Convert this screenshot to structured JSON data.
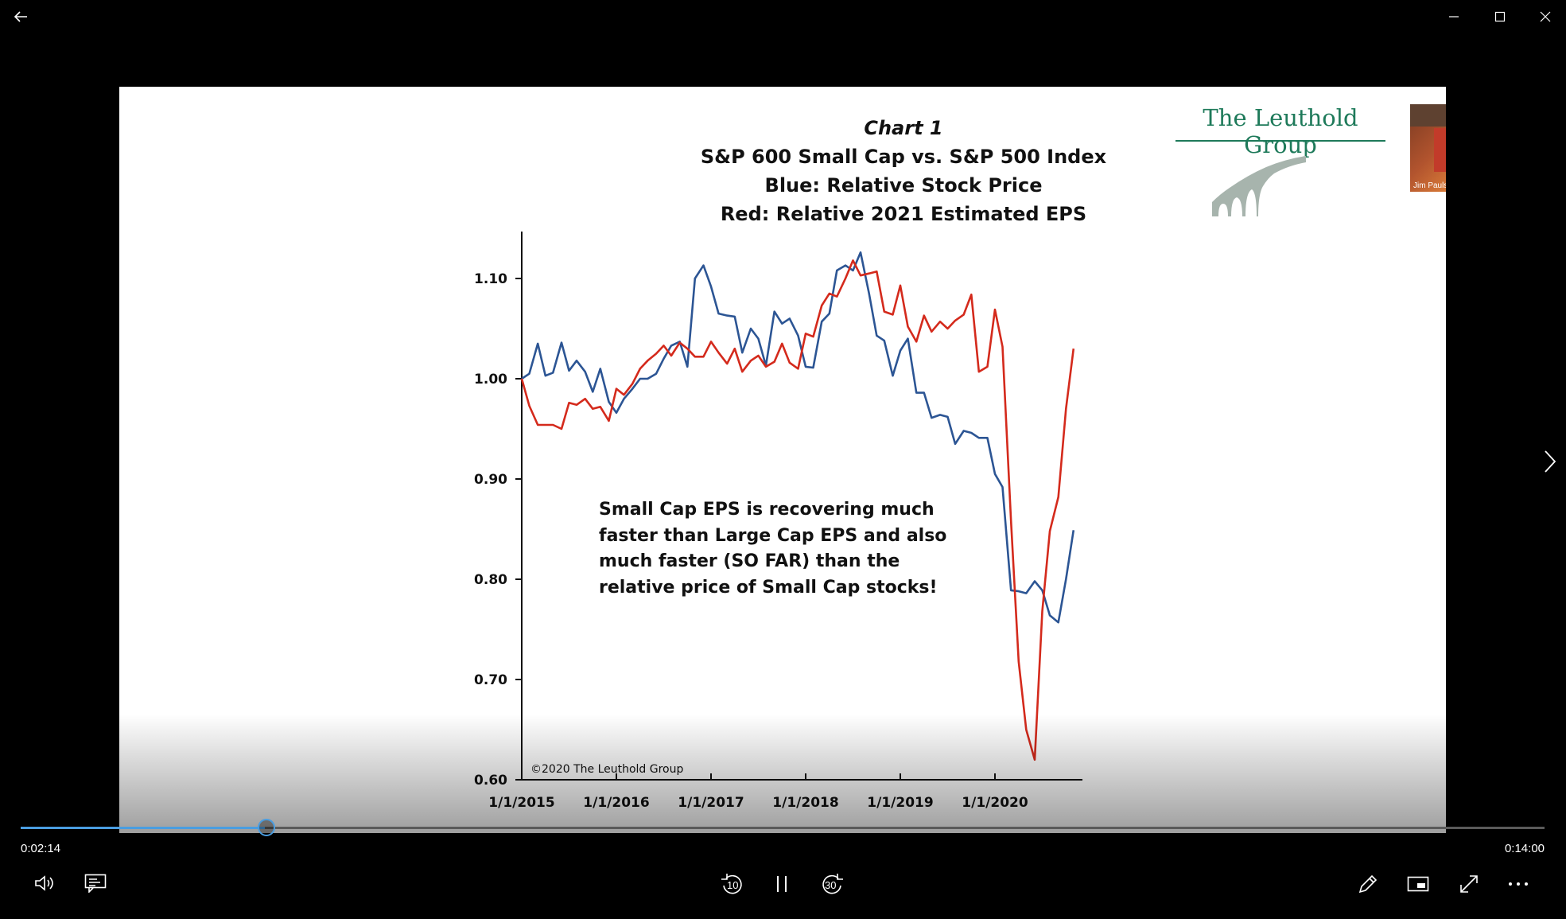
{
  "window": {
    "back_icon": "back-arrow-icon",
    "minimize_icon": "minimize-icon",
    "maximize_icon": "maximize-icon",
    "close_icon": "close-icon"
  },
  "webcam": {
    "name": "Jim Paulsen"
  },
  "slide": {
    "title_lines": [
      "Chart 1",
      "S&P 600 Small Cap vs. S&P 500 Index",
      "Blue: Relative Stock Price",
      "Red: Relative 2021 Estimated EPS"
    ],
    "logo_text": "The Leuthold Group",
    "annotation": "Small Cap EPS is recovering much faster than Large Cap EPS and also much faster (SO FAR) than the relative price of Small Cap stocks!",
    "copyright": "©2020 The Leuthold Group"
  },
  "chart_data": {
    "type": "line",
    "title": "S&P 600 Small Cap vs. S&P 500 Index",
    "xlabel": "",
    "ylabel": "",
    "ylim": [
      0.6,
      1.13
    ],
    "xlim": [
      2015,
      2020.93
    ],
    "y_ticks": [
      0.6,
      0.7,
      0.8,
      0.9,
      1.0,
      1.1
    ],
    "y_tick_labels": [
      "0.60",
      "0.70",
      "0.80",
      "0.90",
      "1.00",
      "1.10"
    ],
    "x_ticks": [
      2015,
      2016,
      2017,
      2018,
      2019,
      2020
    ],
    "x_tick_labels": [
      "1/1/2015",
      "1/1/2016",
      "1/1/2017",
      "1/1/2018",
      "1/1/2019",
      "1/1/2020"
    ],
    "series": [
      {
        "name": "Relative Stock Price",
        "color": "#2c5594",
        "points": [
          [
            2015.0,
            1.0
          ],
          [
            2015.08,
            1.005
          ],
          [
            2015.17,
            1.035
          ],
          [
            2015.25,
            1.003
          ],
          [
            2015.33,
            1.006
          ],
          [
            2015.42,
            1.036
          ],
          [
            2015.5,
            1.008
          ],
          [
            2015.58,
            1.018
          ],
          [
            2015.67,
            1.007
          ],
          [
            2015.75,
            0.987
          ],
          [
            2015.83,
            1.01
          ],
          [
            2015.92,
            0.977
          ],
          [
            2016.0,
            0.966
          ],
          [
            2016.08,
            0.98
          ],
          [
            2016.17,
            0.99
          ],
          [
            2016.25,
            1.0
          ],
          [
            2016.33,
            1.0
          ],
          [
            2016.42,
            1.005
          ],
          [
            2016.5,
            1.02
          ],
          [
            2016.58,
            1.033
          ],
          [
            2016.67,
            1.037
          ],
          [
            2016.75,
            1.012
          ],
          [
            2016.83,
            1.1
          ],
          [
            2016.92,
            1.113
          ],
          [
            2017.0,
            1.092
          ],
          [
            2017.08,
            1.065
          ],
          [
            2017.17,
            1.063
          ],
          [
            2017.25,
            1.062
          ],
          [
            2017.33,
            1.026
          ],
          [
            2017.42,
            1.05
          ],
          [
            2017.5,
            1.04
          ],
          [
            2017.58,
            1.013
          ],
          [
            2017.67,
            1.067
          ],
          [
            2017.75,
            1.055
          ],
          [
            2017.83,
            1.06
          ],
          [
            2017.92,
            1.043
          ],
          [
            2018.0,
            1.012
          ],
          [
            2018.08,
            1.011
          ],
          [
            2018.17,
            1.057
          ],
          [
            2018.25,
            1.065
          ],
          [
            2018.33,
            1.108
          ],
          [
            2018.42,
            1.113
          ],
          [
            2018.5,
            1.108
          ],
          [
            2018.58,
            1.126
          ],
          [
            2018.67,
            1.085
          ],
          [
            2018.75,
            1.043
          ],
          [
            2018.83,
            1.038
          ],
          [
            2018.92,
            1.003
          ],
          [
            2019.0,
            1.028
          ],
          [
            2019.08,
            1.04
          ],
          [
            2019.17,
            0.986
          ],
          [
            2019.25,
            0.986
          ],
          [
            2019.33,
            0.961
          ],
          [
            2019.42,
            0.964
          ],
          [
            2019.5,
            0.962
          ],
          [
            2019.58,
            0.935
          ],
          [
            2019.67,
            0.948
          ],
          [
            2019.75,
            0.946
          ],
          [
            2019.83,
            0.941
          ],
          [
            2019.92,
            0.941
          ],
          [
            2020.0,
            0.905
          ],
          [
            2020.08,
            0.892
          ],
          [
            2020.17,
            0.789
          ],
          [
            2020.25,
            0.788
          ],
          [
            2020.33,
            0.786
          ],
          [
            2020.42,
            0.798
          ],
          [
            2020.5,
            0.789
          ],
          [
            2020.58,
            0.764
          ],
          [
            2020.67,
            0.757
          ],
          [
            2020.75,
            0.8
          ],
          [
            2020.83,
            0.849
          ]
        ]
      },
      {
        "name": "Relative 2021 Estimated EPS",
        "color": "#d42a1c",
        "points": [
          [
            2015.0,
            1.0
          ],
          [
            2015.08,
            0.973
          ],
          [
            2015.17,
            0.954
          ],
          [
            2015.25,
            0.954
          ],
          [
            2015.33,
            0.954
          ],
          [
            2015.42,
            0.95
          ],
          [
            2015.5,
            0.976
          ],
          [
            2015.58,
            0.974
          ],
          [
            2015.67,
            0.98
          ],
          [
            2015.75,
            0.97
          ],
          [
            2015.83,
            0.972
          ],
          [
            2015.92,
            0.958
          ],
          [
            2016.0,
            0.99
          ],
          [
            2016.08,
            0.984
          ],
          [
            2016.17,
            0.995
          ],
          [
            2016.25,
            1.01
          ],
          [
            2016.33,
            1.018
          ],
          [
            2016.42,
            1.025
          ],
          [
            2016.5,
            1.033
          ],
          [
            2016.58,
            1.023
          ],
          [
            2016.67,
            1.036
          ],
          [
            2016.75,
            1.03
          ],
          [
            2016.83,
            1.022
          ],
          [
            2016.92,
            1.022
          ],
          [
            2017.0,
            1.037
          ],
          [
            2017.08,
            1.026
          ],
          [
            2017.17,
            1.015
          ],
          [
            2017.25,
            1.03
          ],
          [
            2017.33,
            1.007
          ],
          [
            2017.42,
            1.018
          ],
          [
            2017.5,
            1.023
          ],
          [
            2017.58,
            1.012
          ],
          [
            2017.67,
            1.017
          ],
          [
            2017.75,
            1.035
          ],
          [
            2017.83,
            1.016
          ],
          [
            2017.92,
            1.01
          ],
          [
            2018.0,
            1.045
          ],
          [
            2018.08,
            1.042
          ],
          [
            2018.17,
            1.073
          ],
          [
            2018.25,
            1.085
          ],
          [
            2018.33,
            1.082
          ],
          [
            2018.42,
            1.1
          ],
          [
            2018.5,
            1.118
          ],
          [
            2018.58,
            1.103
          ],
          [
            2018.67,
            1.105
          ],
          [
            2018.75,
            1.107
          ],
          [
            2018.83,
            1.067
          ],
          [
            2018.92,
            1.064
          ],
          [
            2019.0,
            1.093
          ],
          [
            2019.08,
            1.052
          ],
          [
            2019.17,
            1.037
          ],
          [
            2019.25,
            1.063
          ],
          [
            2019.33,
            1.047
          ],
          [
            2019.42,
            1.057
          ],
          [
            2019.5,
            1.05
          ],
          [
            2019.58,
            1.058
          ],
          [
            2019.67,
            1.064
          ],
          [
            2019.75,
            1.084
          ],
          [
            2019.83,
            1.007
          ],
          [
            2019.92,
            1.012
          ],
          [
            2020.0,
            1.069
          ],
          [
            2020.08,
            1.032
          ],
          [
            2020.17,
            0.858
          ],
          [
            2020.25,
            0.718
          ],
          [
            2020.33,
            0.65
          ],
          [
            2020.42,
            0.62
          ],
          [
            2020.5,
            0.768
          ],
          [
            2020.58,
            0.848
          ],
          [
            2020.67,
            0.882
          ],
          [
            2020.75,
            0.97
          ],
          [
            2020.83,
            1.03
          ]
        ]
      }
    ]
  },
  "player": {
    "current_time": "0:02:14",
    "total_time": "0:14:00",
    "progress_fraction": 0.16,
    "skip_back_label": "10",
    "skip_forward_label": "30",
    "accent_color": "#4a9de0"
  }
}
